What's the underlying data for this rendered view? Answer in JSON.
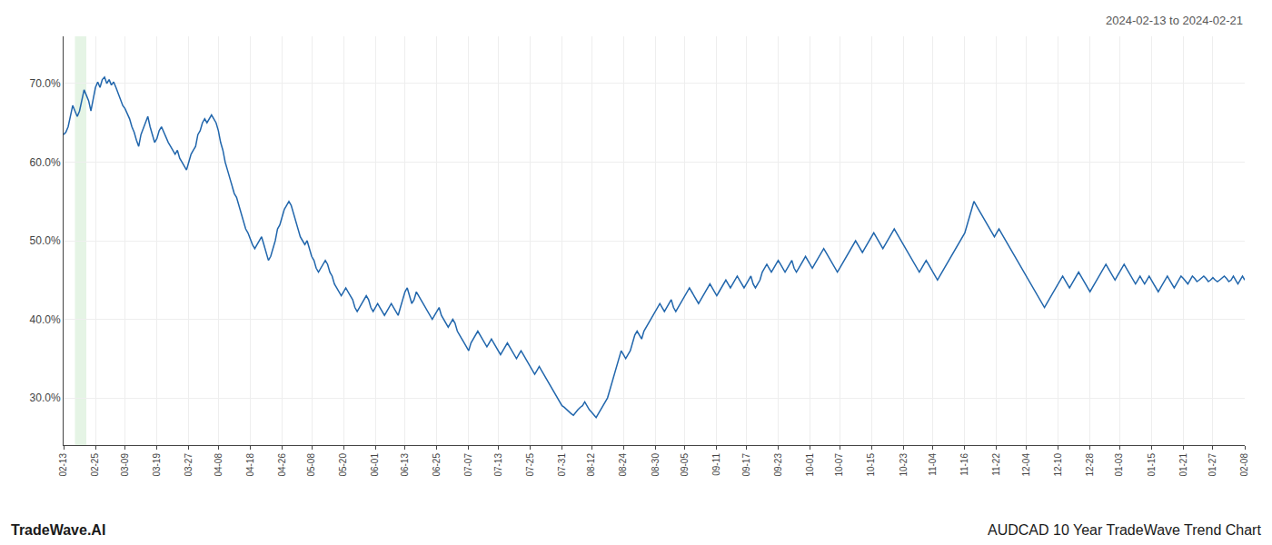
{
  "chart_data": {
    "type": "line",
    "annotations": [
      "2024-02-13 to 2024-02-21",
      "TradeWave.AI",
      "AUDCAD 10 Year TradeWave Trend Chart"
    ],
    "color": "#2166ac",
    "grid": true,
    "ylim": [
      24,
      76
    ],
    "yticks": [
      {
        "value": 30,
        "label": "30.0%"
      },
      {
        "value": 40,
        "label": "40.0%"
      },
      {
        "value": 50,
        "label": "50.0%"
      },
      {
        "value": 60,
        "label": "60.0%"
      },
      {
        "value": 70,
        "label": "70.0%"
      }
    ],
    "shade": {
      "start": 5,
      "end": 10,
      "color": "#d4ecd4"
    },
    "categories": [
      "02-13",
      null,
      null,
      null,
      null,
      null,
      null,
      null,
      null,
      null,
      null,
      null,
      null,
      null,
      "02-25",
      null,
      null,
      null,
      null,
      null,
      null,
      null,
      null,
      null,
      null,
      null,
      null,
      "03-09",
      null,
      null,
      null,
      null,
      null,
      null,
      null,
      null,
      null,
      null,
      null,
      null,
      null,
      "03-19",
      null,
      null,
      null,
      null,
      null,
      null,
      null,
      null,
      null,
      null,
      null,
      null,
      null,
      "03-27",
      null,
      null,
      null,
      null,
      null,
      null,
      null,
      null,
      null,
      null,
      null,
      null,
      "04-08",
      null,
      null,
      null,
      null,
      null,
      null,
      null,
      null,
      null,
      null,
      null,
      null,
      null,
      "04-18",
      null,
      null,
      null,
      null,
      null,
      null,
      null,
      null,
      null,
      null,
      null,
      null,
      null,
      "04-26",
      null,
      null,
      null,
      null,
      null,
      null,
      null,
      null,
      null,
      null,
      null,
      null,
      "05-08",
      null,
      null,
      null,
      null,
      null,
      null,
      null,
      null,
      null,
      null,
      null,
      null,
      null,
      "05-20",
      null,
      null,
      null,
      null,
      null,
      null,
      null,
      null,
      null,
      null,
      null,
      null,
      null,
      "06-01",
      null,
      null,
      null,
      null,
      null,
      null,
      null,
      null,
      null,
      null,
      null,
      null,
      "06-13",
      null,
      null,
      null,
      null,
      null,
      null,
      null,
      null,
      null,
      null,
      null,
      null,
      null,
      "06-25",
      null,
      null,
      null,
      null,
      null,
      null,
      null,
      null,
      null,
      null,
      null,
      null,
      null,
      "07-07",
      null,
      null,
      null,
      null,
      null,
      null,
      null,
      null,
      null,
      null,
      null,
      null,
      "07-13",
      null,
      null,
      null,
      null,
      null,
      null,
      null,
      null,
      null,
      null,
      null,
      null,
      null,
      "07-25",
      null,
      null,
      null,
      null,
      null,
      null,
      null,
      null,
      null,
      null,
      null,
      null,
      null,
      "07-31",
      null,
      null,
      null,
      null,
      null,
      null,
      null,
      null,
      null,
      null,
      null,
      null,
      "08-12",
      null,
      null,
      null,
      null,
      null,
      null,
      null,
      null,
      null,
      null,
      null,
      null,
      null,
      "08-24",
      null,
      null,
      null,
      null,
      null,
      null,
      null,
      null,
      null,
      null,
      null,
      null,
      null,
      "08-30",
      null,
      null,
      null,
      null,
      null,
      null,
      null,
      null,
      null,
      null,
      null,
      null,
      "09-05",
      null,
      null,
      null,
      null,
      null,
      null,
      null,
      null,
      null,
      null,
      null,
      null,
      null,
      "09-11",
      null,
      null,
      null,
      null,
      null,
      null,
      null,
      null,
      null,
      null,
      null,
      null,
      "09-17",
      null,
      null,
      null,
      null,
      null,
      null,
      null,
      null,
      null,
      null,
      null,
      null,
      null,
      "09-23",
      null,
      null,
      null,
      null,
      null,
      null,
      null,
      null,
      null,
      null,
      null,
      null,
      null,
      "10-01",
      null,
      null,
      null,
      null,
      null,
      null,
      null,
      null,
      null,
      null,
      null,
      null,
      "10-07",
      null,
      null,
      null,
      null,
      null,
      null,
      null,
      null,
      null,
      null,
      null,
      null,
      null,
      "10-15",
      null,
      null,
      null,
      null,
      null,
      null,
      null,
      null,
      null,
      null,
      null,
      null,
      null,
      "10-23",
      null,
      null,
      null,
      null,
      null,
      null,
      null,
      null,
      null,
      null,
      null,
      null,
      "11-04",
      null,
      null,
      null,
      null,
      null,
      null,
      null,
      null,
      null,
      null,
      null,
      null,
      null,
      "11-16",
      null,
      null,
      null,
      null,
      null,
      null,
      null,
      null,
      null,
      null,
      null,
      null,
      null,
      "11-22",
      null,
      null,
      null,
      null,
      null,
      null,
      null,
      null,
      null,
      null,
      null,
      null,
      "12-04",
      null,
      null,
      null,
      null,
      null,
      null,
      null,
      null,
      null,
      null,
      null,
      null,
      null,
      "12-10",
      null,
      null,
      null,
      null,
      null,
      null,
      null,
      null,
      null,
      null,
      null,
      null,
      null,
      "12-28",
      null,
      null,
      null,
      null,
      null,
      null,
      null,
      null,
      null,
      null,
      null,
      null,
      "01-03",
      null,
      null,
      null,
      null,
      null,
      null,
      null,
      null,
      null,
      null,
      null,
      null,
      null,
      "01-15",
      null,
      null,
      null,
      null,
      null,
      null,
      null,
      null,
      null,
      null,
      null,
      null,
      null,
      "01-21",
      null,
      null,
      null,
      null,
      null,
      null,
      null,
      null,
      null,
      null,
      null,
      null,
      "01-27",
      null,
      null,
      null,
      null,
      null,
      null,
      null,
      null,
      null,
      null,
      null,
      null,
      null,
      "02-08"
    ],
    "values": [
      63.5,
      63.8,
      64.5,
      65.8,
      67.2,
      66.5,
      65.8,
      66.5,
      68.0,
      69.2,
      68.5,
      67.8,
      66.5,
      67.8,
      69.5,
      70.2,
      69.5,
      70.5,
      70.8,
      70.0,
      70.5,
      69.8,
      70.2,
      69.5,
      68.8,
      68.0,
      67.2,
      66.8,
      66.2,
      65.5,
      64.5,
      63.8,
      62.8,
      62.0,
      63.5,
      64.2,
      65.0,
      65.8,
      64.5,
      63.5,
      62.5,
      63.0,
      64.0,
      64.5,
      63.8,
      63.0,
      62.5,
      62.0,
      61.5,
      61.0,
      61.5,
      60.5,
      60.0,
      59.5,
      59.0,
      60.0,
      61.0,
      61.5,
      62.0,
      63.5,
      64.0,
      65.0,
      65.5,
      65.0,
      65.5,
      66.0,
      65.5,
      65.0,
      64.0,
      62.5,
      61.5,
      60.0,
      59.0,
      58.0,
      57.0,
      56.0,
      55.5,
      54.5,
      53.5,
      52.5,
      51.5,
      51.0,
      50.2,
      49.5,
      49.0,
      49.5,
      50.0,
      50.5,
      49.5,
      48.5,
      47.5,
      48.0,
      49.0,
      50.0,
      51.5,
      52.0,
      53.0,
      54.0,
      54.5,
      55.0,
      54.5,
      53.5,
      52.5,
      51.5,
      50.5,
      50.0,
      49.5,
      50.0,
      49.0,
      48.0,
      47.5,
      46.5,
      46.0,
      46.5,
      47.0,
      47.5,
      47.0,
      46.0,
      45.5,
      44.5,
      44.0,
      43.5,
      43.0,
      43.5,
      44.0,
      43.5,
      43.0,
      42.5,
      41.5,
      41.0,
      41.5,
      42.0,
      42.5,
      43.0,
      42.5,
      41.5,
      41.0,
      41.5,
      42.0,
      41.5,
      41.0,
      40.5,
      41.0,
      41.5,
      42.0,
      41.5,
      41.0,
      40.5,
      41.5,
      42.5,
      43.5,
      44.0,
      43.0,
      42.0,
      42.5,
      43.5,
      43.0,
      42.5,
      42.0,
      41.5,
      41.0,
      40.5,
      40.0,
      40.5,
      41.0,
      41.5,
      40.5,
      40.0,
      39.5,
      39.0,
      39.5,
      40.0,
      39.5,
      38.5,
      38.0,
      37.5,
      37.0,
      36.5,
      36.0,
      37.0,
      37.5,
      38.0,
      38.5,
      38.0,
      37.5,
      37.0,
      36.5,
      37.0,
      37.5,
      37.0,
      36.5,
      36.0,
      35.5,
      36.0,
      36.5,
      37.0,
      36.5,
      36.0,
      35.5,
      35.0,
      35.5,
      36.0,
      35.5,
      35.0,
      34.5,
      34.0,
      33.5,
      33.0,
      33.5,
      34.0,
      33.5,
      33.0,
      32.5,
      32.0,
      31.5,
      31.0,
      30.5,
      30.0,
      29.5,
      29.0,
      28.8,
      28.5,
      28.2,
      28.0,
      27.8,
      28.2,
      28.5,
      28.8,
      29.0,
      29.5,
      29.0,
      28.5,
      28.2,
      27.8,
      27.5,
      28.0,
      28.5,
      29.0,
      29.5,
      30.0,
      31.0,
      32.0,
      33.0,
      34.0,
      35.0,
      36.0,
      35.5,
      35.0,
      35.5,
      36.0,
      37.0,
      38.0,
      38.5,
      38.0,
      37.5,
      38.5,
      39.0,
      39.5,
      40.0,
      40.5,
      41.0,
      41.5,
      42.0,
      41.5,
      41.0,
      41.5,
      42.0,
      42.5,
      41.5,
      41.0,
      41.5,
      42.0,
      42.5,
      43.0,
      43.5,
      44.0,
      43.5,
      43.0,
      42.5,
      42.0,
      42.5,
      43.0,
      43.5,
      44.0,
      44.5,
      44.0,
      43.5,
      43.0,
      43.5,
      44.0,
      44.5,
      45.0,
      44.5,
      44.0,
      44.5,
      45.0,
      45.5,
      45.0,
      44.5,
      44.0,
      44.5,
      45.0,
      45.5,
      44.5,
      44.0,
      44.5,
      45.0,
      46.0,
      46.5,
      47.0,
      46.5,
      46.0,
      46.5,
      47.0,
      47.5,
      47.0,
      46.5,
      46.0,
      46.5,
      47.0,
      47.5,
      46.5,
      46.0,
      46.5,
      47.0,
      47.5,
      48.0,
      47.5,
      47.0,
      46.5,
      47.0,
      47.5,
      48.0,
      48.5,
      49.0,
      48.5,
      48.0,
      47.5,
      47.0,
      46.5,
      46.0,
      46.5,
      47.0,
      47.5,
      48.0,
      48.5,
      49.0,
      49.5,
      50.0,
      49.5,
      49.0,
      48.5,
      49.0,
      49.5,
      50.0,
      50.5,
      51.0,
      50.5,
      50.0,
      49.5,
      49.0,
      49.5,
      50.0,
      50.5,
      51.0,
      51.5,
      51.0,
      50.5,
      50.0,
      49.5,
      49.0,
      48.5,
      48.0,
      47.5,
      47.0,
      46.5,
      46.0,
      46.5,
      47.0,
      47.5,
      47.0,
      46.5,
      46.0,
      45.5,
      45.0,
      45.5,
      46.0,
      46.5,
      47.0,
      47.5,
      48.0,
      48.5,
      49.0,
      49.5,
      50.0,
      50.5,
      51.0,
      52.0,
      53.0,
      54.0,
      55.0,
      54.5,
      54.0,
      53.5,
      53.0,
      52.5,
      52.0,
      51.5,
      51.0,
      50.5,
      51.0,
      51.5,
      51.0,
      50.5,
      50.0,
      49.5,
      49.0,
      48.5,
      48.0,
      47.5,
      47.0,
      46.5,
      46.0,
      45.5,
      45.0,
      44.5,
      44.0,
      43.5,
      43.0,
      42.5,
      42.0,
      41.5,
      42.0,
      42.5,
      43.0,
      43.5,
      44.0,
      44.5,
      45.0,
      45.5,
      45.0,
      44.5,
      44.0,
      44.5,
      45.0,
      45.5,
      46.0,
      45.5,
      45.0,
      44.5,
      44.0,
      43.5,
      44.0,
      44.5,
      45.0,
      45.5,
      46.0,
      46.5,
      47.0,
      46.5,
      46.0,
      45.5,
      45.0,
      45.5,
      46.0,
      46.5,
      47.0,
      46.5,
      46.0,
      45.5,
      45.0,
      44.5,
      45.0,
      45.5,
      45.0,
      44.5,
      45.0,
      45.5,
      45.0,
      44.5,
      44.0,
      43.5,
      44.0,
      44.5,
      45.0,
      45.5,
      45.0,
      44.5,
      44.0,
      44.5,
      45.0,
      45.5,
      45.2,
      44.8,
      44.5,
      45.0,
      45.5,
      45.2,
      44.8,
      45.0,
      45.3,
      45.5,
      45.2,
      44.8,
      45.0,
      45.3,
      45.0,
      44.8,
      45.0,
      45.2,
      45.5,
      45.2,
      44.8,
      45.0,
      45.5,
      45.0,
      44.5,
      45.0,
      45.5,
      45.0
    ]
  }
}
